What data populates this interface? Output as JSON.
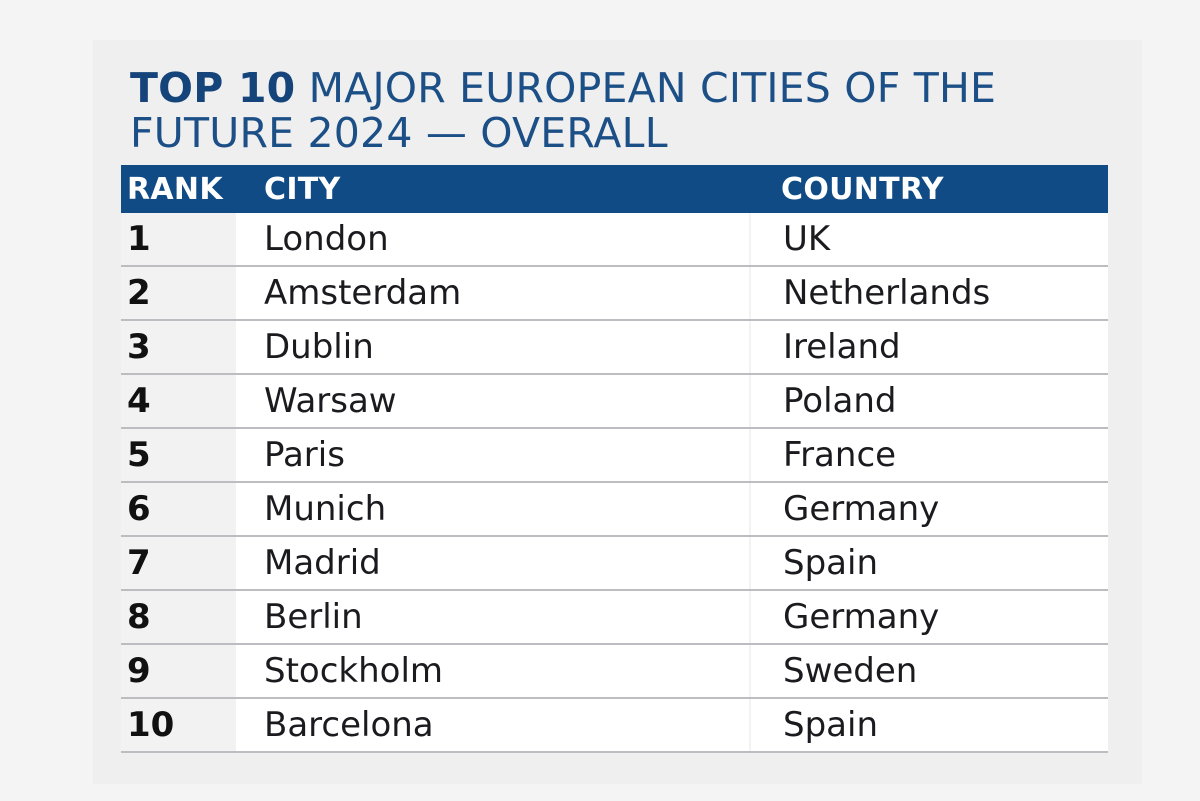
{
  "title": {
    "lead": "TOP 10",
    "rest_line1": "MAJOR EUROPEAN CITIES OF THE",
    "line2": "FUTURE 2024 — OVERALL"
  },
  "table": {
    "headers": {
      "rank": "RANK",
      "city": "CITY",
      "country": "COUNTRY"
    },
    "rows": [
      {
        "rank": "1",
        "city": "London",
        "country": "UK"
      },
      {
        "rank": "2",
        "city": "Amsterdam",
        "country": "Netherlands"
      },
      {
        "rank": "3",
        "city": "Dublin",
        "country": "Ireland"
      },
      {
        "rank": "4",
        "city": "Warsaw",
        "country": "Poland"
      },
      {
        "rank": "5",
        "city": "Paris",
        "country": "France"
      },
      {
        "rank": "6",
        "city": "Munich",
        "country": "Germany"
      },
      {
        "rank": "7",
        "city": "Madrid",
        "country": "Spain"
      },
      {
        "rank": "8",
        "city": "Berlin",
        "country": "Germany"
      },
      {
        "rank": "9",
        "city": "Stockholm",
        "country": "Sweden"
      },
      {
        "rank": "10",
        "city": "Barcelona",
        "country": "Spain"
      }
    ]
  },
  "colors": {
    "header_bg": "#104b86",
    "title_color": "#1c4f86"
  }
}
